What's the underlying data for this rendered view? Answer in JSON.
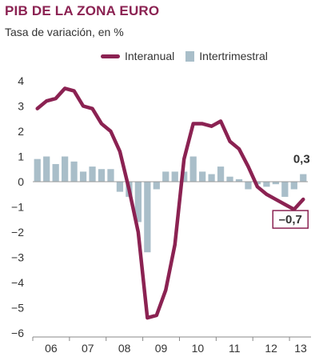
{
  "header": {
    "title": "PIB DE LA ZONA EURO",
    "subtitle": "Tasa de variación, en %"
  },
  "colors": {
    "line": "#8b2252",
    "bars": "#a9bec9",
    "title": "#8b2252",
    "axis": "#888888",
    "grid": "#999999"
  },
  "chart_data": {
    "type": "bar",
    "title": "PIB DE LA ZONA EURO",
    "subtitle": "Tasa de variación, en %",
    "xlabel": "",
    "ylabel": "",
    "ylim": [
      -6,
      4
    ],
    "yticks": [
      4,
      3,
      2,
      1,
      0,
      -1,
      -2,
      -3,
      -4,
      -5,
      -6
    ],
    "ytick_labels": [
      "4",
      "3",
      "2",
      "1",
      "0",
      "−1",
      "−2",
      "−3",
      "−4",
      "−5",
      "−6"
    ],
    "x_tick_labels": [
      "06",
      "07",
      "08",
      "09",
      "10",
      "11",
      "12",
      "13"
    ],
    "legend": [
      "Interanual",
      "Intertrimestral"
    ],
    "legend_position": "top",
    "grid": false,
    "quarters": [
      "2006-Q1",
      "2006-Q2",
      "2006-Q3",
      "2006-Q4",
      "2007-Q1",
      "2007-Q2",
      "2007-Q3",
      "2007-Q4",
      "2008-Q1",
      "2008-Q2",
      "2008-Q3",
      "2008-Q4",
      "2009-Q1",
      "2009-Q2",
      "2009-Q3",
      "2009-Q4",
      "2010-Q1",
      "2010-Q2",
      "2010-Q3",
      "2010-Q4",
      "2011-Q1",
      "2011-Q2",
      "2011-Q3",
      "2011-Q4",
      "2012-Q1",
      "2012-Q2",
      "2012-Q3",
      "2012-Q4",
      "2013-Q1",
      "2013-Q2"
    ],
    "series": [
      {
        "name": "Interanual",
        "type": "line",
        "values": [
          2.9,
          3.2,
          3.3,
          3.7,
          3.6,
          3.0,
          2.9,
          2.3,
          2.0,
          1.2,
          -0.3,
          -2.0,
          -5.4,
          -5.3,
          -4.3,
          -2.5,
          0.9,
          2.3,
          2.3,
          2.2,
          2.4,
          1.6,
          1.3,
          0.6,
          -0.2,
          -0.5,
          -0.7,
          -0.9,
          -1.1,
          -0.7
        ]
      },
      {
        "name": "Intertrimestral",
        "type": "bar",
        "values": [
          0.9,
          1.0,
          0.7,
          1.0,
          0.8,
          0.4,
          0.6,
          0.5,
          0.5,
          -0.4,
          -0.6,
          -1.6,
          -2.8,
          -0.3,
          0.4,
          0.4,
          0.4,
          1.0,
          0.4,
          0.3,
          0.6,
          0.2,
          0.1,
          -0.3,
          -0.1,
          -0.2,
          -0.1,
          -0.6,
          -0.3,
          0.3
        ]
      }
    ],
    "annotations": [
      {
        "label": "0,3",
        "series": "Intertrimestral",
        "index": 29,
        "boxed": false
      },
      {
        "label": "–0,7",
        "series": "Interanual",
        "index": 29,
        "boxed": true
      }
    ]
  }
}
